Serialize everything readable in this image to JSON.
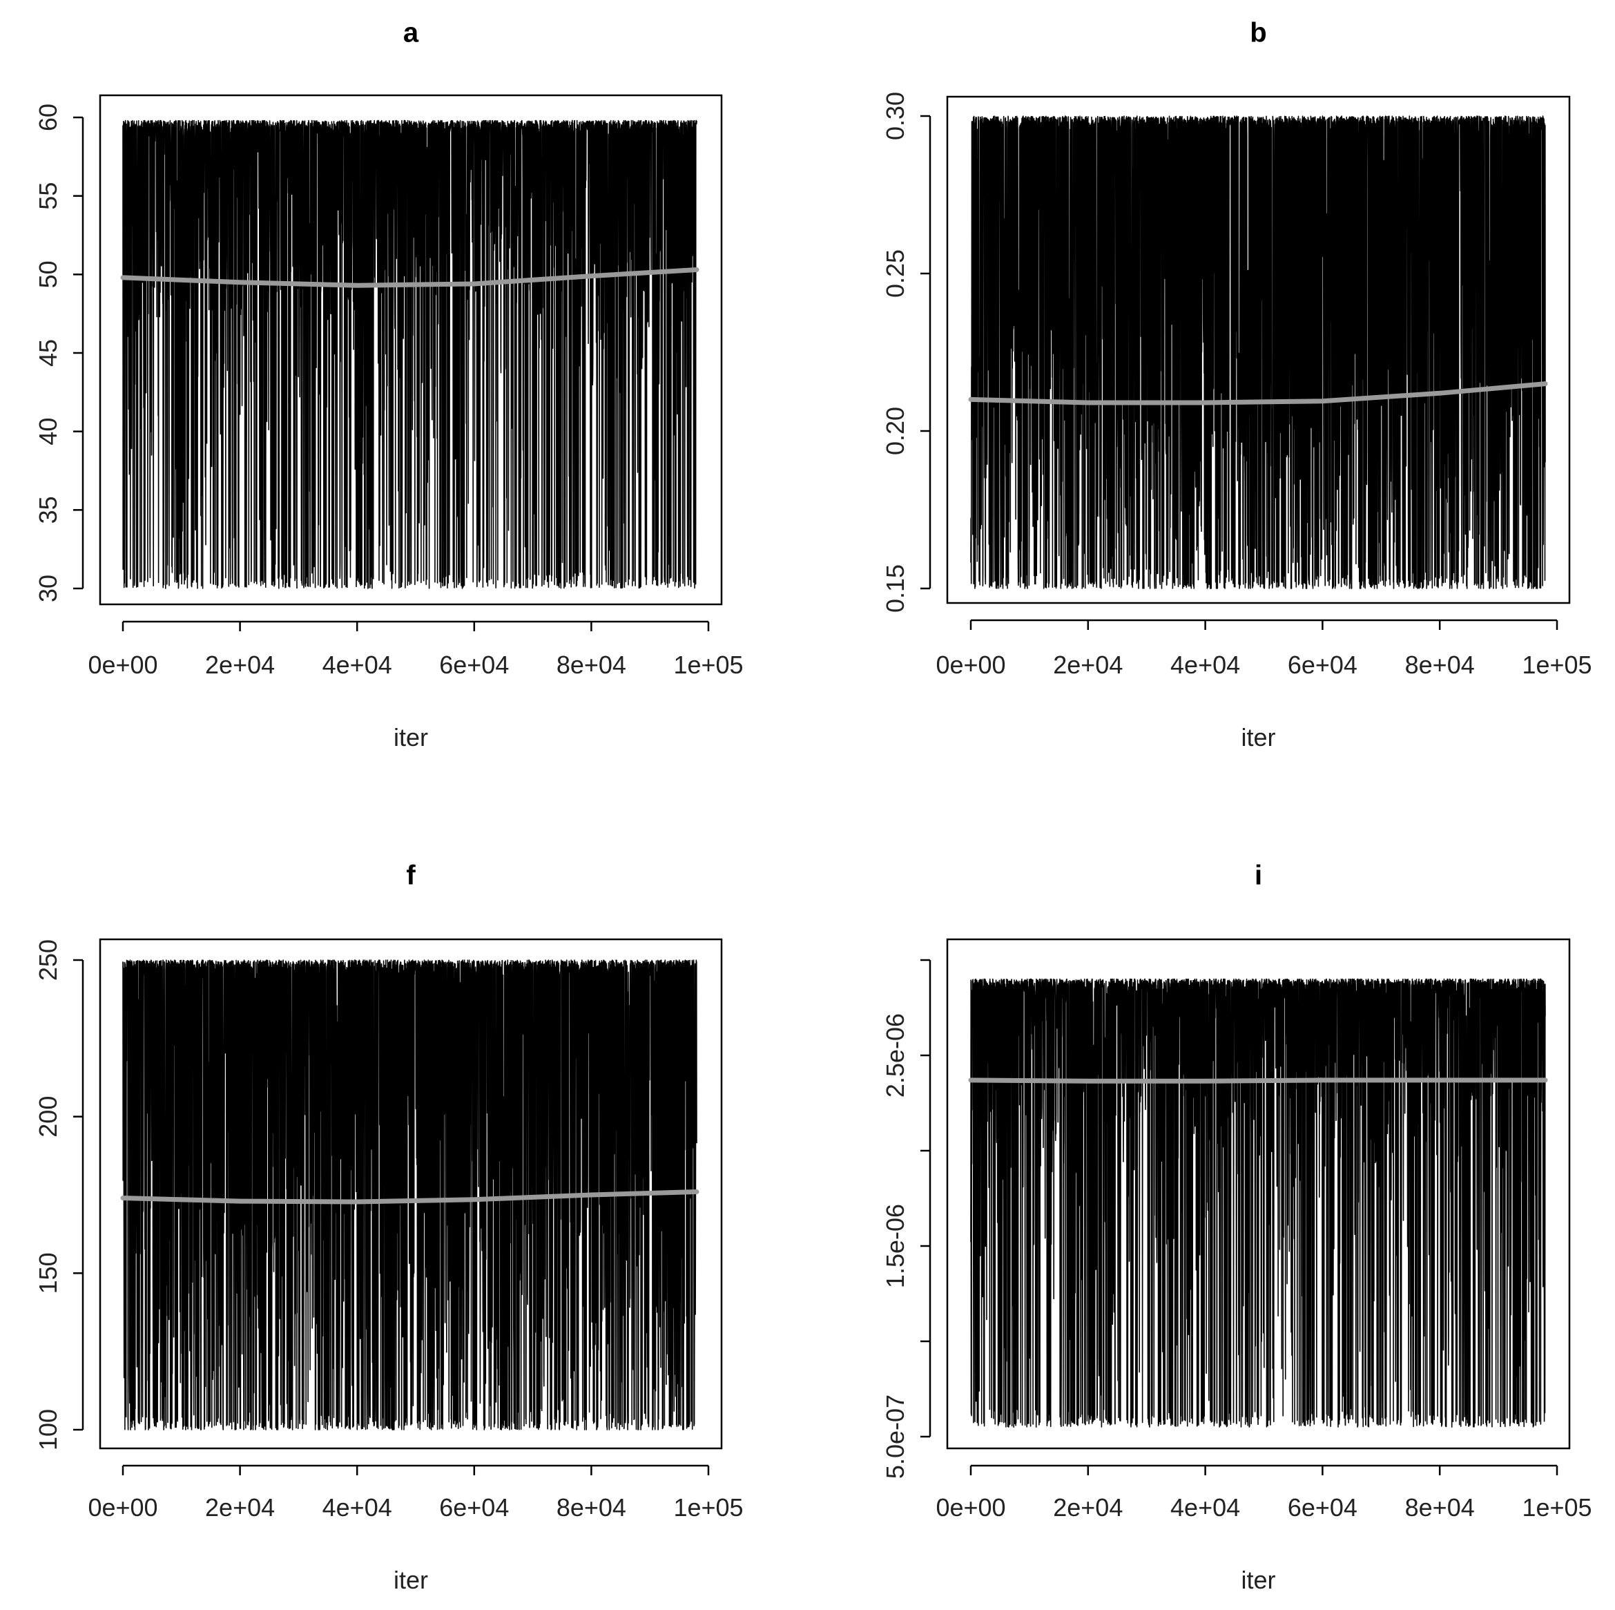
{
  "colors": {
    "trace": "#000000",
    "smooth": "#9a9a9a"
  },
  "chart_data": [
    {
      "type": "line",
      "title": "a",
      "xlabel": "iter",
      "ylabel": "",
      "xlim": [
        0,
        100000
      ],
      "ylim": [
        30,
        60
      ],
      "x_ticks": [
        0,
        20000,
        40000,
        60000,
        80000,
        100000
      ],
      "x_tick_labels": [
        "0e+00",
        "2e+04",
        "4e+04",
        "6e+04",
        "8e+04",
        "1e+05"
      ],
      "y_ticks": [
        30,
        35,
        40,
        45,
        50,
        55,
        60
      ],
      "y_tick_labels": [
        "30",
        "35",
        "40",
        "45",
        "50",
        "55",
        "60"
      ],
      "trace": {
        "x_max": 98000,
        "low": 30,
        "high": 59.8,
        "center": 53,
        "spread": 5
      },
      "smooth": {
        "x": [
          0,
          20000,
          40000,
          60000,
          80000,
          98000
        ],
        "y": [
          49.8,
          49.5,
          49.3,
          49.4,
          49.9,
          50.3
        ]
      }
    },
    {
      "type": "line",
      "title": "b",
      "xlabel": "iter",
      "ylabel": "",
      "xlim": [
        0,
        100000
      ],
      "ylim": [
        0.15,
        0.3
      ],
      "x_ticks": [
        0,
        20000,
        40000,
        60000,
        80000,
        100000
      ],
      "x_tick_labels": [
        "0e+00",
        "2e+04",
        "4e+04",
        "6e+04",
        "8e+04",
        "1e+05"
      ],
      "y_ticks": [
        0.15,
        0.2,
        0.25,
        0.3
      ],
      "y_tick_labels": [
        "0.15",
        "0.20",
        "0.25",
        "0.30"
      ],
      "trace": {
        "x_max": 98000,
        "low": 0.15,
        "high": 0.3,
        "center": 0.2,
        "spread": 0.035
      },
      "smooth": {
        "x": [
          0,
          20000,
          40000,
          60000,
          80000,
          98000
        ],
        "y": [
          0.21,
          0.209,
          0.209,
          0.2095,
          0.212,
          0.215
        ]
      }
    },
    {
      "type": "line",
      "title": "f",
      "xlabel": "iter",
      "ylabel": "",
      "xlim": [
        0,
        100000
      ],
      "ylim": [
        100,
        250
      ],
      "x_ticks": [
        0,
        20000,
        40000,
        60000,
        80000,
        100000
      ],
      "x_tick_labels": [
        "0e+00",
        "2e+04",
        "4e+04",
        "6e+04",
        "8e+04",
        "1e+05"
      ],
      "y_ticks": [
        100,
        150,
        200,
        250
      ],
      "y_tick_labels": [
        "100",
        "150",
        "200",
        "250"
      ],
      "trace": {
        "x_max": 98000,
        "low": 100,
        "high": 250,
        "center": 175,
        "spread": 45
      },
      "smooth": {
        "x": [
          0,
          20000,
          40000,
          60000,
          80000,
          98000
        ],
        "y": [
          174,
          173,
          172.8,
          173.5,
          175,
          176
        ]
      }
    },
    {
      "type": "line",
      "title": "i",
      "xlabel": "iter",
      "ylabel": "",
      "xlim": [
        0,
        100000
      ],
      "ylim": [
        5e-07,
        3e-06
      ],
      "x_ticks": [
        0,
        20000,
        40000,
        60000,
        80000,
        100000
      ],
      "x_tick_labels": [
        "0e+00",
        "2e+04",
        "4e+04",
        "6e+04",
        "8e+04",
        "1e+05"
      ],
      "y_ticks": [
        5e-07,
        1e-06,
        1.5e-06,
        2e-06,
        2.5e-06,
        3e-06
      ],
      "y_tick_labels": [
        "5.0e-07",
        "",
        "1.5e-06",
        "",
        "2.5e-06",
        ""
      ],
      "trace": {
        "x_max": 98000,
        "low": 5.5e-07,
        "high": 2.9e-06,
        "center": 2.5e-06,
        "spread": 3.5e-07
      },
      "smooth": {
        "x": [
          0,
          20000,
          40000,
          60000,
          80000,
          98000
        ],
        "y": [
          2.37e-06,
          2.365e-06,
          2.365e-06,
          2.37e-06,
          2.37e-06,
          2.37e-06
        ]
      }
    }
  ]
}
